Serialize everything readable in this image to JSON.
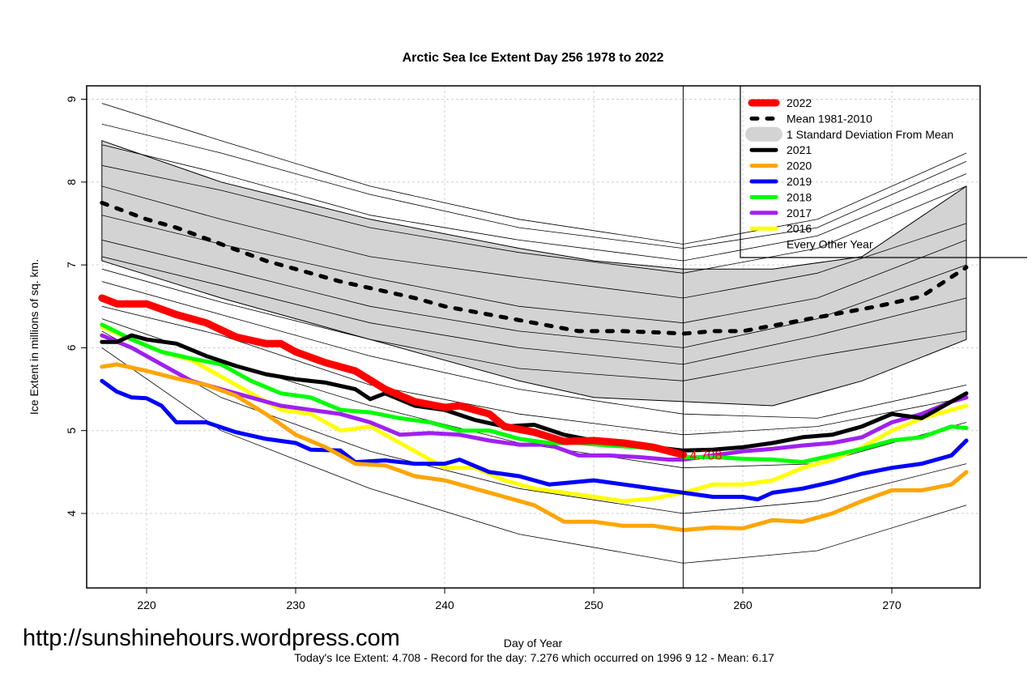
{
  "chart_data": {
    "type": "line",
    "title": "Arctic Sea Ice Extent Day 256 1978 to 2022",
    "xlabel": "Day of Year",
    "ylabel": "Ice Extent in millions of sq. km.",
    "xlim": [
      216,
      276
    ],
    "ylim": [
      3.1,
      9.15
    ],
    "xticks": [
      220,
      230,
      240,
      250,
      260,
      270
    ],
    "yticks": [
      4,
      5,
      6,
      7,
      8,
      9
    ],
    "grid": true,
    "legend_position": "top-right",
    "current_day_marker": 256,
    "end_label": "4.708",
    "std_band": {
      "name": "1 Standard Deviation From Mean",
      "color": "#d3d3d3",
      "x": [
        217,
        225,
        235,
        245,
        250,
        256,
        262,
        268,
        275
      ],
      "upper": [
        8.5,
        8.0,
        7.55,
        7.2,
        7.05,
        6.95,
        6.95,
        7.1,
        7.95
      ],
      "lower": [
        7.05,
        6.6,
        6.1,
        5.6,
        5.4,
        5.35,
        5.3,
        5.6,
        6.1
      ]
    },
    "mean": {
      "name": "Mean 1981-2010",
      "color": "#000000",
      "x": [
        217,
        220,
        222,
        225,
        228,
        230,
        233,
        236,
        238,
        240,
        243,
        246,
        249,
        252,
        255,
        256,
        258,
        260,
        263,
        266,
        269,
        272,
        275
      ],
      "y": [
        7.75,
        7.55,
        7.45,
        7.25,
        7.05,
        6.95,
        6.8,
        6.68,
        6.6,
        6.5,
        6.4,
        6.3,
        6.2,
        6.2,
        6.18,
        6.17,
        6.2,
        6.2,
        6.3,
        6.4,
        6.5,
        6.62,
        6.97
      ]
    },
    "series": [
      {
        "name": "2022",
        "color": "#ff0000",
        "width": 9,
        "x": [
          217,
          218,
          220,
          222,
          224,
          226,
          228,
          229,
          230,
          232,
          234,
          236,
          238,
          240,
          241,
          243,
          244,
          246,
          248,
          250,
          252,
          254,
          256
        ],
        "y": [
          6.6,
          6.53,
          6.53,
          6.4,
          6.3,
          6.13,
          6.05,
          6.05,
          5.95,
          5.82,
          5.72,
          5.5,
          5.35,
          5.28,
          5.3,
          5.2,
          5.05,
          4.98,
          4.87,
          4.88,
          4.85,
          4.8,
          4.708
        ]
      },
      {
        "name": "2021",
        "color": "#000000",
        "width": 5,
        "x": [
          217,
          218,
          219,
          220,
          222,
          224,
          226,
          228,
          230,
          232,
          234,
          235,
          236,
          238,
          240,
          242,
          244,
          246,
          248,
          250,
          252,
          254,
          256,
          258,
          260,
          262,
          264,
          266,
          268,
          270,
          272,
          274,
          275
        ],
        "y": [
          6.07,
          6.07,
          6.15,
          6.1,
          6.05,
          5.9,
          5.78,
          5.68,
          5.62,
          5.58,
          5.5,
          5.38,
          5.45,
          5.3,
          5.25,
          5.13,
          5.05,
          5.07,
          4.95,
          4.88,
          4.85,
          4.8,
          4.76,
          4.77,
          4.8,
          4.85,
          4.92,
          4.95,
          5.05,
          5.2,
          5.15,
          5.35,
          5.45
        ]
      },
      {
        "name": "2020",
        "color": "#ffa500",
        "width": 5,
        "x": [
          217,
          218,
          220,
          222,
          224,
          226,
          228,
          230,
          232,
          234,
          236,
          238,
          240,
          242,
          244,
          246,
          248,
          250,
          252,
          254,
          256,
          258,
          260,
          262,
          264,
          266,
          268,
          270,
          272,
          274,
          275
        ],
        "y": [
          5.77,
          5.8,
          5.72,
          5.63,
          5.55,
          5.42,
          5.2,
          4.95,
          4.8,
          4.6,
          4.58,
          4.45,
          4.4,
          4.3,
          4.2,
          4.1,
          3.9,
          3.9,
          3.85,
          3.85,
          3.8,
          3.83,
          3.82,
          3.92,
          3.9,
          4.0,
          4.15,
          4.28,
          4.28,
          4.35,
          4.5
        ]
      },
      {
        "name": "2019",
        "color": "#0000ff",
        "width": 5,
        "x": [
          217,
          218,
          219,
          220,
          221,
          222,
          224,
          226,
          228,
          230,
          231,
          233,
          234,
          236,
          238,
          240,
          241,
          243,
          245,
          247,
          250,
          252,
          254,
          256,
          258,
          260,
          261,
          262,
          264,
          266,
          268,
          270,
          272,
          274,
          275
        ],
        "y": [
          5.6,
          5.47,
          5.4,
          5.39,
          5.3,
          5.1,
          5.1,
          4.98,
          4.9,
          4.85,
          4.77,
          4.76,
          4.62,
          4.64,
          4.6,
          4.6,
          4.65,
          4.5,
          4.45,
          4.35,
          4.4,
          4.35,
          4.3,
          4.25,
          4.2,
          4.2,
          4.17,
          4.25,
          4.3,
          4.38,
          4.48,
          4.55,
          4.6,
          4.7,
          4.88
        ]
      },
      {
        "name": "2018",
        "color": "#00ff00",
        "width": 5,
        "x": [
          217,
          219,
          221,
          223,
          225,
          227,
          229,
          231,
          233,
          235,
          237,
          239,
          241,
          243,
          245,
          247,
          249,
          251,
          253,
          255,
          256,
          258,
          260,
          262,
          264,
          266,
          268,
          270,
          272,
          274,
          275
        ],
        "y": [
          6.28,
          6.1,
          5.95,
          5.87,
          5.8,
          5.6,
          5.45,
          5.4,
          5.25,
          5.22,
          5.15,
          5.1,
          5.0,
          5.0,
          4.9,
          4.85,
          4.85,
          4.82,
          4.8,
          4.75,
          4.68,
          4.68,
          4.66,
          4.65,
          4.62,
          4.7,
          4.78,
          4.88,
          4.92,
          5.05,
          5.03
        ]
      },
      {
        "name": "2017",
        "color": "#a020f0",
        "width": 5,
        "x": [
          217,
          219,
          221,
          223,
          225,
          227,
          229,
          231,
          233,
          235,
          237,
          239,
          241,
          243,
          245,
          247,
          249,
          251,
          253,
          255,
          256,
          258,
          260,
          262,
          264,
          266,
          268,
          270,
          272,
          274,
          275
        ],
        "y": [
          6.15,
          6.0,
          5.8,
          5.6,
          5.5,
          5.4,
          5.3,
          5.25,
          5.2,
          5.1,
          4.95,
          4.97,
          4.95,
          4.88,
          4.83,
          4.83,
          4.7,
          4.7,
          4.68,
          4.65,
          4.65,
          4.7,
          4.75,
          4.78,
          4.82,
          4.85,
          4.92,
          5.1,
          5.2,
          5.35,
          5.4
        ]
      },
      {
        "name": "2016",
        "color": "#ffff00",
        "width": 5,
        "x": [
          217,
          219,
          221,
          223,
          225,
          227,
          229,
          231,
          233,
          235,
          237,
          239,
          240,
          242,
          244,
          246,
          248,
          250,
          252,
          254,
          256,
          258,
          260,
          262,
          264,
          266,
          268,
          270,
          272,
          274,
          275
        ],
        "y": [
          6.25,
          6.1,
          5.95,
          5.85,
          5.65,
          5.45,
          5.25,
          5.2,
          5.0,
          5.05,
          4.85,
          4.65,
          4.55,
          4.55,
          4.4,
          4.3,
          4.25,
          4.2,
          4.15,
          4.18,
          4.25,
          4.35,
          4.35,
          4.4,
          4.55,
          4.65,
          4.8,
          5.0,
          5.15,
          5.25,
          5.3
        ]
      }
    ],
    "other_years": {
      "name": "Every Other Year",
      "color": "#000000",
      "x": [
        217,
        225,
        235,
        245,
        256,
        265,
        275
      ],
      "lines": [
        [
          8.95,
          8.5,
          7.95,
          7.55,
          7.25,
          7.55,
          8.35
        ],
        [
          8.7,
          8.35,
          7.85,
          7.45,
          7.2,
          7.45,
          8.25
        ],
        [
          8.45,
          8.1,
          7.6,
          7.3,
          7.05,
          7.35,
          8.1
        ],
        [
          8.2,
          7.9,
          7.45,
          7.15,
          6.9,
          7.2,
          7.95
        ],
        [
          7.95,
          7.55,
          7.1,
          6.85,
          6.6,
          6.9,
          7.5
        ],
        [
          7.6,
          7.25,
          6.85,
          6.5,
          6.3,
          6.6,
          7.3
        ],
        [
          7.3,
          6.95,
          6.5,
          6.2,
          6.0,
          6.35,
          7.0
        ],
        [
          7.1,
          6.75,
          6.3,
          6.0,
          5.8,
          6.15,
          6.6
        ],
        [
          6.95,
          6.55,
          6.1,
          5.75,
          5.6,
          5.9,
          6.2
        ],
        [
          6.8,
          6.4,
          5.9,
          5.5,
          5.2,
          5.15,
          5.55
        ],
        [
          6.5,
          6.15,
          5.55,
          5.2,
          4.95,
          5.05,
          5.4
        ],
        [
          6.35,
          5.85,
          5.3,
          4.85,
          4.55,
          4.6,
          5.1
        ],
        [
          6.2,
          5.4,
          4.75,
          4.3,
          4.0,
          4.15,
          4.6
        ],
        [
          6.0,
          5.0,
          4.3,
          3.75,
          3.4,
          3.55,
          4.1
        ]
      ]
    },
    "legend": [
      "2022",
      "Mean 1981-2010",
      "1 Standard Deviation From Mean",
      "2021",
      "2020",
      "2019",
      "2018",
      "2017",
      "2016",
      "Every Other Year"
    ]
  },
  "watermark": "http://sunshinehours.wordpress.com",
  "footer": "Today's Ice Extent: 4.708  - Record for the day: 7.276 which occurred on 1996 9 12  - Mean: 6.17"
}
